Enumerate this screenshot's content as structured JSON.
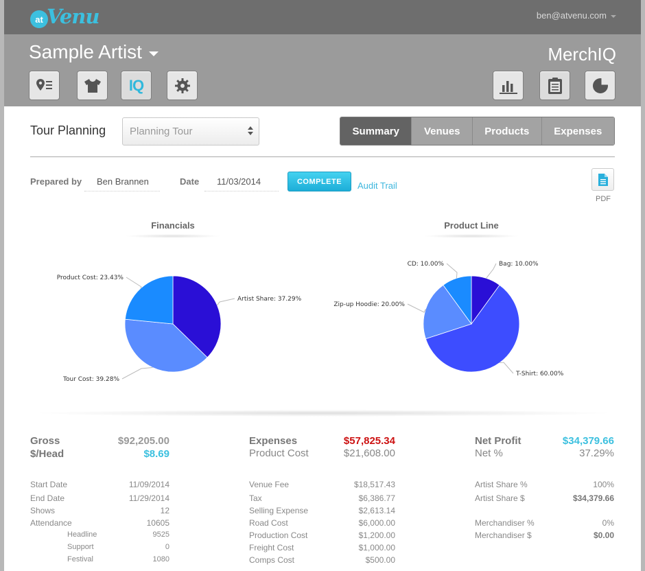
{
  "app": {
    "logo_at": "at",
    "logo_name": "Venu",
    "user_email": "ben@atvenu.com",
    "artist_name": "Sample Artist",
    "module_title": "MerchIQ",
    "iq_label": "IQ"
  },
  "colors": {
    "accent": "#3cc0df",
    "negative": "#cc1111",
    "slice_dark": "#2a0fd6",
    "slice_mid": "#5a8cff",
    "slice_light": "#1a8bff"
  },
  "planning": {
    "label": "Tour Planning",
    "tour_select_value": "Planning Tour",
    "tabs": [
      "Summary",
      "Venues",
      "Products",
      "Expenses"
    ],
    "active_tab": "Summary"
  },
  "prepared": {
    "prepared_by_label": "Prepared by",
    "prepared_by_value": "Ben Brannen",
    "date_label": "Date",
    "date_value": "11/03/2014",
    "complete_label": "COMPLETE",
    "audit_label": "Audit Trail",
    "pdf_label": "PDF"
  },
  "chart_data": [
    {
      "type": "pie",
      "title": "Financials",
      "slices": [
        {
          "label": "Artist Share: 37.29%",
          "value": 37.29,
          "color": "#2a0fd6"
        },
        {
          "label": "Tour Cost: 39.28%",
          "value": 39.28,
          "color": "#5a8cff"
        },
        {
          "label": "Product Cost: 23.43%",
          "value": 23.43,
          "color": "#1a8bff"
        }
      ]
    },
    {
      "type": "pie",
      "title": "Product Line",
      "slices": [
        {
          "label": "Bag: 10.00%",
          "value": 10.0,
          "color": "#2a0fd6"
        },
        {
          "label": "T-Shirt: 60.00%",
          "value": 60.0,
          "color": "#3d4dff"
        },
        {
          "label": "Zip-up Hoodie: 20.00%",
          "value": 20.0,
          "color": "#5a8cff"
        },
        {
          "label": "CD: 10.00%",
          "value": 10.0,
          "color": "#1a8bff"
        }
      ]
    }
  ],
  "summary": {
    "gross_label": "Gross",
    "gross_value": "$92,205.00",
    "perhead_label": "$/Head",
    "perhead_value": "$8.69",
    "expenses_label": "Expenses",
    "expenses_value": "$57,825.34",
    "product_cost_label": "Product Cost",
    "product_cost_value": "$21,608.00",
    "net_profit_label": "Net Profit",
    "net_profit_value": "$34,379.66",
    "net_pct_label": "Net %",
    "net_pct_value": "37.29%"
  },
  "tour_details": [
    {
      "label": "Start Date",
      "value": "11/09/2014"
    },
    {
      "label": "End Date",
      "value": "11/29/2014"
    },
    {
      "label": "Shows",
      "value": "12"
    },
    {
      "label": "Attendance",
      "value": "10605"
    },
    {
      "label": "Headline",
      "value": "9525"
    },
    {
      "label": "Support",
      "value": "0"
    },
    {
      "label": "Festival",
      "value": "1080"
    }
  ],
  "expense_details": [
    {
      "label": "Venue Fee",
      "value": "$18,517.43"
    },
    {
      "label": "Tax",
      "value": "$6,386.77"
    },
    {
      "label": "Selling Expense",
      "value": "$2,613.14"
    },
    {
      "label": "Road Cost",
      "value": "$6,000.00"
    },
    {
      "label": "Production Cost",
      "value": "$1,200.00"
    },
    {
      "label": "Freight Cost",
      "value": "$1,000.00"
    },
    {
      "label": "Comps Cost",
      "value": "$500.00"
    }
  ],
  "share_details": [
    {
      "label": "Artist Share %",
      "value": "100%"
    },
    {
      "label": "Artist Share $",
      "value": "$34,379.66"
    },
    {
      "label": "Merchandiser %",
      "value": "0%"
    },
    {
      "label": "Merchandiser $",
      "value": "$0.00"
    }
  ]
}
